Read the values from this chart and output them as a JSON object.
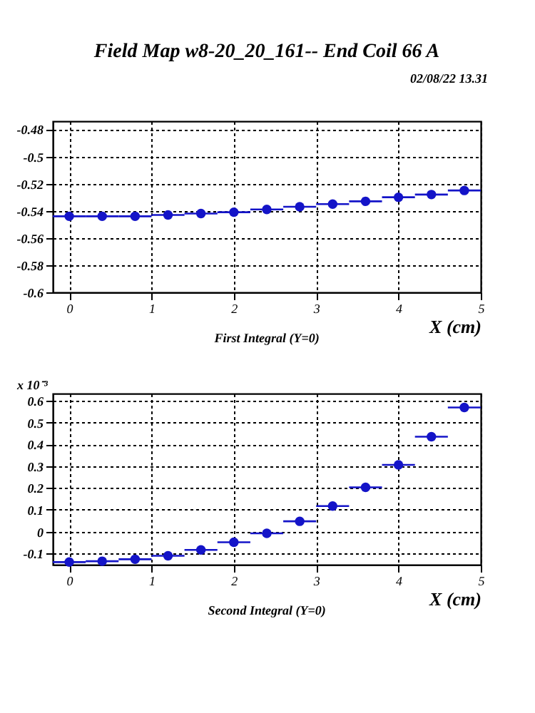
{
  "chart_data": [
    {
      "type": "scatter",
      "title": "Field Map w8-20_20_161-- End Coil 66 A",
      "xlabel": "X (cm)",
      "annotations": [
        "02/08/22  13.31",
        "First Integral (Y=0)"
      ],
      "x": [
        0,
        0.4,
        0.8,
        1.2,
        1.6,
        2,
        2.4,
        2.8,
        3.2,
        3.6,
        4,
        4.4,
        4.8
      ],
      "series": [
        {
          "color": "#1414c8",
          "values": [
            -0.544,
            -0.544,
            -0.544,
            -0.543,
            -0.542,
            -0.541,
            -0.539,
            -0.537,
            -0.535,
            -0.533,
            -0.53,
            -0.528,
            -0.525
          ],
          "xerrors": [
            0.2,
            0.2,
            0.2,
            0.2,
            0.2,
            0.2,
            0.2,
            0.2,
            0.2,
            0.2,
            0.2,
            0.2,
            0.2
          ]
        }
      ],
      "xlim": [
        -0.2,
        5
      ],
      "xticks": [
        0,
        1,
        2,
        3,
        4,
        5
      ],
      "ylim": [
        -0.6,
        -0.474
      ],
      "yticks": [
        -0.6,
        -0.58,
        -0.56,
        -0.54,
        -0.52,
        -0.5,
        -0.48
      ],
      "grid": true,
      "marker": "circle"
    },
    {
      "type": "scatter",
      "xlabel": "X (cm)",
      "annotations": [
        "x 10⁻³",
        "Second Integral (Y=0)"
      ],
      "x": [
        0,
        0.4,
        0.8,
        1.2,
        1.6,
        2,
        2.4,
        2.8,
        3.2,
        3.6,
        4,
        4.4,
        4.8
      ],
      "series": [
        {
          "color": "#1414c8",
          "values": [
            -0.14,
            -0.136,
            -0.127,
            -0.111,
            -0.084,
            -0.049,
            -0.008,
            0.047,
            0.117,
            0.203,
            0.306,
            0.435,
            0.569
          ],
          "xerrors": [
            0.2,
            0.2,
            0.2,
            0.2,
            0.2,
            0.2,
            0.2,
            0.2,
            0.2,
            0.2,
            0.2,
            0.2,
            0.2
          ]
        }
      ],
      "xlim": [
        -0.2,
        5
      ],
      "xticks": [
        0,
        1,
        2,
        3,
        4,
        5
      ],
      "ylim": [
        -0.152,
        0.633
      ],
      "yticks": [
        -0.1,
        0,
        0.1,
        0.2,
        0.3,
        0.4,
        0.5,
        0.6
      ],
      "grid": true,
      "marker": "circle"
    }
  ]
}
